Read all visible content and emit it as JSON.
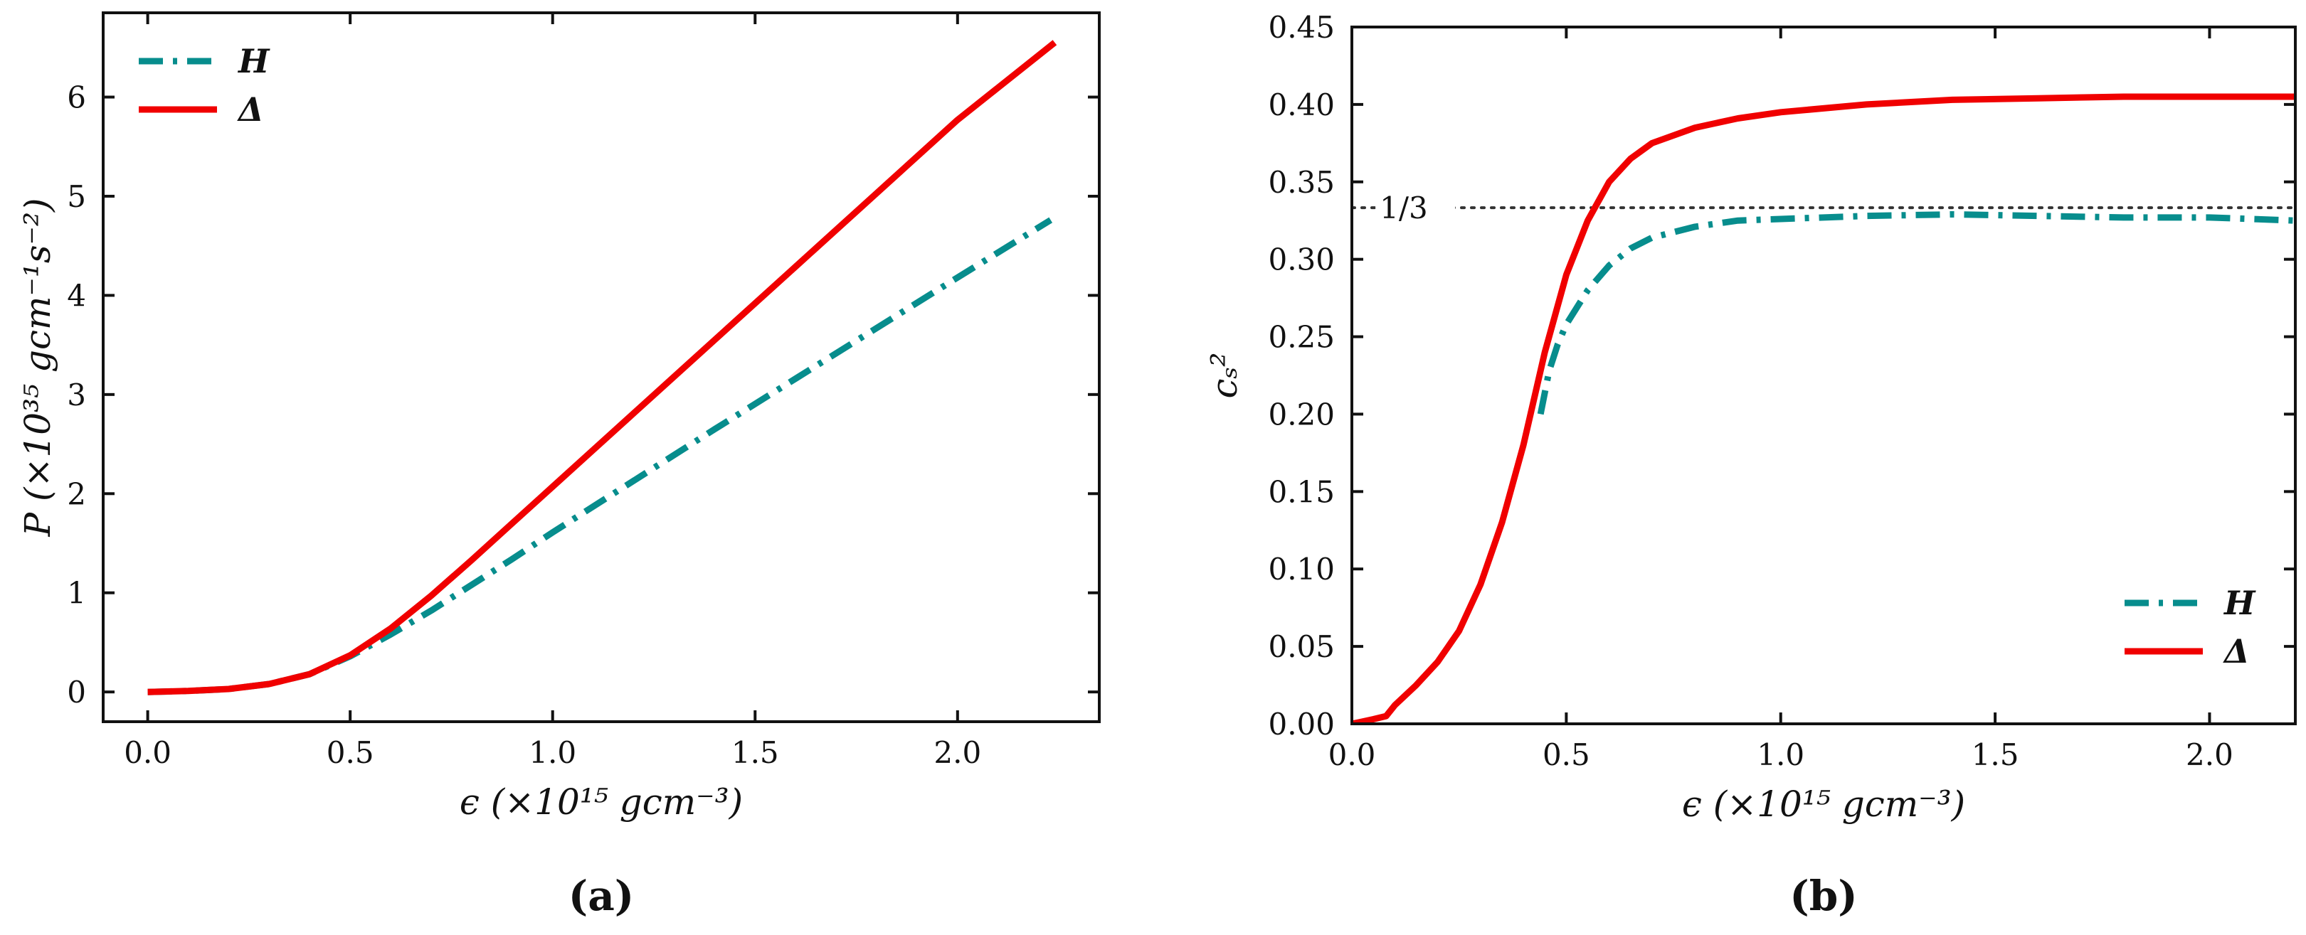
{
  "colors": {
    "H": "#078d8d",
    "Delta": "#f00000",
    "axis": "#111111",
    "ref": "#333333"
  },
  "chart_data": [
    {
      "id": "a",
      "type": "line",
      "caption": "(a)",
      "xlabel": "ϵ (×10¹⁵ gcm⁻³)",
      "ylabel": "P (×10³⁵ gcm⁻¹s⁻²)",
      "xlim": [
        -0.11,
        2.35
      ],
      "ylim": [
        -0.3,
        6.85
      ],
      "xticks": [
        0.0,
        0.5,
        1.0,
        1.5,
        2.0
      ],
      "xtick_labels": [
        "0.0",
        "0.5",
        "1.0",
        "1.5",
        "2.0"
      ],
      "yticks": [
        0,
        1,
        2,
        3,
        4,
        5,
        6
      ],
      "ytick_labels": [
        "0",
        "1",
        "2",
        "3",
        "4",
        "5",
        "6"
      ],
      "legend": {
        "position": "top-left",
        "entries": [
          "H",
          "Δ"
        ]
      },
      "series": [
        {
          "name": "H",
          "style": "dashdot",
          "x": [
            0.0,
            0.1,
            0.2,
            0.3,
            0.4,
            0.5,
            0.6,
            0.7,
            0.8,
            0.9,
            1.0,
            1.2,
            1.4,
            1.6,
            1.8,
            2.0,
            2.23
          ],
          "y": [
            0.0,
            0.01,
            0.03,
            0.08,
            0.18,
            0.36,
            0.58,
            0.82,
            1.08,
            1.34,
            1.61,
            2.13,
            2.65,
            3.16,
            3.67,
            4.18,
            4.76
          ]
        },
        {
          "name": "Δ",
          "style": "solid",
          "x": [
            0.0,
            0.1,
            0.2,
            0.3,
            0.4,
            0.5,
            0.6,
            0.7,
            0.8,
            0.9,
            1.0,
            1.2,
            1.4,
            1.6,
            1.8,
            2.0,
            2.24
          ],
          "y": [
            0.0,
            0.01,
            0.03,
            0.08,
            0.18,
            0.37,
            0.64,
            0.97,
            1.33,
            1.7,
            2.07,
            2.81,
            3.55,
            4.29,
            5.03,
            5.77,
            6.55
          ]
        }
      ]
    },
    {
      "id": "b",
      "type": "line",
      "caption": "(b)",
      "xlabel": "ϵ (×10¹⁵ gcm⁻³)",
      "ylabel": "cₛ²",
      "xlim": [
        0.0,
        2.2
      ],
      "ylim": [
        0.0,
        0.45
      ],
      "xticks": [
        0.0,
        0.5,
        1.0,
        1.5,
        2.0
      ],
      "xtick_labels": [
        "0.0",
        "0.5",
        "1.0",
        "1.5",
        "2.0"
      ],
      "yticks": [
        0.0,
        0.05,
        0.1,
        0.15,
        0.2,
        0.25,
        0.3,
        0.35,
        0.4,
        0.45
      ],
      "ytick_labels": [
        "0.00",
        "0.05",
        "0.10",
        "0.15",
        "0.20",
        "0.25",
        "0.30",
        "0.35",
        "0.40",
        "0.45"
      ],
      "reference_line": {
        "y": 0.3333,
        "label": "1/3",
        "style": "dotted"
      },
      "legend": {
        "position": "bottom-right",
        "entries": [
          "H",
          "Δ"
        ]
      },
      "series": [
        {
          "name": "H",
          "style": "dashdot",
          "x": [
            0.44,
            0.46,
            0.48,
            0.5,
            0.55,
            0.6,
            0.65,
            0.7,
            0.8,
            0.9,
            1.0,
            1.2,
            1.4,
            1.6,
            1.8,
            2.0,
            2.2
          ],
          "y": [
            0.2,
            0.228,
            0.245,
            0.258,
            0.28,
            0.296,
            0.307,
            0.314,
            0.321,
            0.325,
            0.326,
            0.328,
            0.329,
            0.328,
            0.327,
            0.327,
            0.325
          ]
        },
        {
          "name": "Δ",
          "style": "solid",
          "x": [
            0.0,
            0.05,
            0.08,
            0.1,
            0.15,
            0.2,
            0.25,
            0.3,
            0.35,
            0.4,
            0.45,
            0.5,
            0.55,
            0.6,
            0.65,
            0.7,
            0.8,
            0.9,
            1.0,
            1.2,
            1.4,
            1.6,
            1.8,
            2.0,
            2.2
          ],
          "y": [
            0.0,
            0.003,
            0.005,
            0.012,
            0.025,
            0.04,
            0.06,
            0.09,
            0.13,
            0.18,
            0.24,
            0.29,
            0.325,
            0.35,
            0.365,
            0.375,
            0.385,
            0.391,
            0.395,
            0.4,
            0.403,
            0.404,
            0.405,
            0.405,
            0.405
          ]
        }
      ]
    }
  ]
}
